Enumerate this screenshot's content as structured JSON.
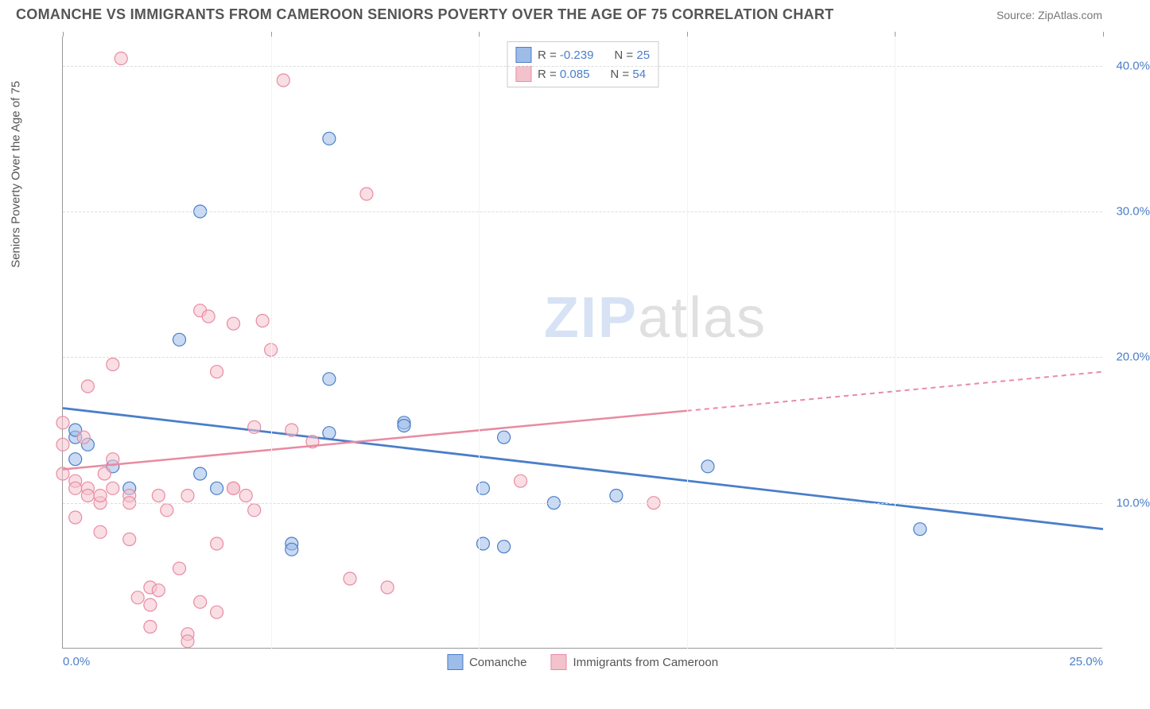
{
  "title": "COMANCHE VS IMMIGRANTS FROM CAMEROON SENIORS POVERTY OVER THE AGE OF 75 CORRELATION CHART",
  "source": "Source: ZipAtlas.com",
  "y_axis_label": "Seniors Poverty Over the Age of 75",
  "watermark": {
    "bold": "ZIP",
    "rest": "atlas"
  },
  "chart": {
    "type": "scatter",
    "xlim": [
      0,
      25
    ],
    "ylim": [
      0,
      42
    ],
    "x_ticks": [
      0,
      5,
      10,
      15,
      20,
      25
    ],
    "x_tick_labels": [
      "0.0%",
      "",
      "",
      "",
      "",
      "25.0%"
    ],
    "y_ticks": [
      10,
      20,
      30,
      40
    ],
    "y_tick_labels": [
      "10.0%",
      "20.0%",
      "30.0%",
      "40.0%"
    ],
    "grid_color_h": "#dddddd",
    "grid_color_v": "#eeeeee",
    "background_color": "#ffffff",
    "axis_color": "#999999"
  },
  "series": [
    {
      "name": "Comanche",
      "color_fill": "#9dbce8",
      "color_stroke": "#4a7ec9",
      "marker_radius": 8,
      "r_value": "-0.239",
      "n_value": "25",
      "regression": {
        "x1": 0,
        "y1": 16.5,
        "x2": 25,
        "y2": 8.2,
        "dashed_from_x": null
      },
      "points": [
        [
          0.3,
          14.5
        ],
        [
          0.3,
          13.0
        ],
        [
          0.6,
          14.0
        ],
        [
          1.6,
          11.0
        ],
        [
          3.3,
          30.0
        ],
        [
          2.8,
          21.2
        ],
        [
          3.7,
          11.0
        ],
        [
          3.3,
          12.0
        ],
        [
          5.5,
          7.2
        ],
        [
          5.5,
          6.8
        ],
        [
          6.4,
          18.5
        ],
        [
          6.4,
          35.0
        ],
        [
          8.2,
          15.5
        ],
        [
          8.2,
          15.3
        ],
        [
          10.1,
          7.2
        ],
        [
          10.1,
          11.0
        ],
        [
          10.6,
          7.0
        ],
        [
          10.6,
          14.5
        ],
        [
          11.8,
          10.0
        ],
        [
          13.3,
          10.5
        ],
        [
          15.5,
          12.5
        ],
        [
          20.6,
          8.2
        ],
        [
          0.3,
          15.0
        ],
        [
          6.4,
          14.8
        ],
        [
          1.2,
          12.5
        ]
      ]
    },
    {
      "name": "Immigrants from Cameroon",
      "color_fill": "#f4c2cd",
      "color_stroke": "#e88ba3",
      "marker_radius": 8,
      "r_value": "0.085",
      "n_value": "54",
      "regression": {
        "x1": 0,
        "y1": 12.3,
        "x2": 25,
        "y2": 19.0,
        "dashed_from_x": 15
      },
      "points": [
        [
          0.0,
          15.5
        ],
        [
          0.0,
          14.0
        ],
        [
          0.0,
          12.0
        ],
        [
          0.3,
          11.5
        ],
        [
          0.3,
          11.0
        ],
        [
          0.3,
          9.0
        ],
        [
          0.6,
          18.0
        ],
        [
          0.6,
          11.0
        ],
        [
          0.6,
          10.5
        ],
        [
          0.9,
          8.0
        ],
        [
          0.9,
          10.0
        ],
        [
          0.9,
          10.5
        ],
        [
          1.2,
          13.0
        ],
        [
          1.2,
          19.5
        ],
        [
          1.2,
          11.0
        ],
        [
          1.4,
          40.5
        ],
        [
          1.6,
          10.5
        ],
        [
          1.6,
          7.5
        ],
        [
          1.6,
          10.0
        ],
        [
          1.8,
          3.5
        ],
        [
          2.1,
          4.2
        ],
        [
          2.1,
          3.0
        ],
        [
          2.3,
          10.5
        ],
        [
          2.3,
          4.0
        ],
        [
          2.5,
          9.5
        ],
        [
          3.0,
          1.0
        ],
        [
          3.0,
          0.5
        ],
        [
          3.0,
          10.5
        ],
        [
          3.3,
          3.2
        ],
        [
          3.3,
          23.2
        ],
        [
          3.5,
          22.8
        ],
        [
          3.7,
          19.0
        ],
        [
          3.7,
          7.2
        ],
        [
          3.7,
          2.5
        ],
        [
          4.1,
          22.3
        ],
        [
          4.1,
          11.0
        ],
        [
          4.4,
          10.5
        ],
        [
          4.6,
          15.2
        ],
        [
          4.6,
          9.5
        ],
        [
          4.8,
          22.5
        ],
        [
          5.0,
          20.5
        ],
        [
          5.3,
          39.0
        ],
        [
          5.5,
          15.0
        ],
        [
          6.0,
          14.2
        ],
        [
          6.9,
          4.8
        ],
        [
          7.3,
          31.2
        ],
        [
          7.8,
          4.2
        ],
        [
          11.0,
          11.5
        ],
        [
          14.2,
          10.0
        ],
        [
          2.8,
          5.5
        ],
        [
          0.5,
          14.5
        ],
        [
          1.0,
          12.0
        ],
        [
          4.1,
          11.0
        ],
        [
          2.1,
          1.5
        ]
      ]
    }
  ],
  "legend_bottom": [
    {
      "label": "Comanche",
      "fill": "#9dbce8",
      "stroke": "#4a7ec9"
    },
    {
      "label": "Immigrants from Cameroon",
      "fill": "#f4c2cd",
      "stroke": "#e88ba3"
    }
  ]
}
